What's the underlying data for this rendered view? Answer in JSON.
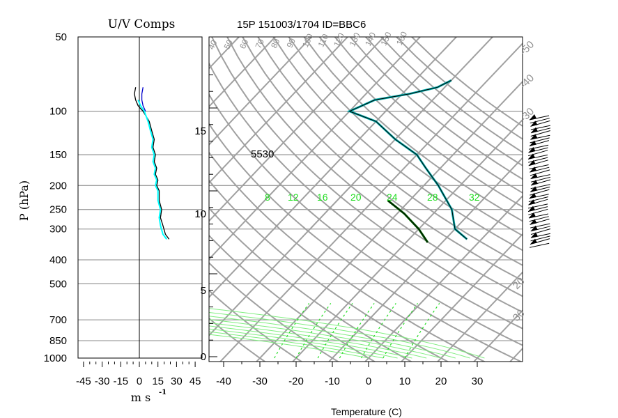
{
  "chart_data": [
    {
      "type": "line",
      "title": "U/V Comps",
      "xlabel": "m s",
      "xlabel_superscript": "-1",
      "ylabel": "P (hPa)",
      "xlim": [
        -50,
        50
      ],
      "ylim": [
        1000,
        50
      ],
      "y_scale": "log",
      "x_tick_labels": [
        "-45",
        "-30",
        "-15",
        "0",
        "15",
        "30",
        "45"
      ],
      "pressure_levels": [
        50,
        100,
        150,
        200,
        250,
        300,
        400,
        500,
        700,
        850,
        1000
      ],
      "grid": true,
      "series": [
        {
          "color": "#000000",
          "p": [
            330,
            315,
            290,
            270,
            250,
            230,
            210,
            200,
            190,
            180,
            170,
            160,
            150,
            140,
            130,
            120,
            110,
            100,
            95,
            90,
            85,
            80
          ],
          "v": [
            24,
            21,
            19,
            17,
            18,
            16,
            16,
            14,
            15,
            13,
            14,
            12,
            13,
            11,
            12,
            10,
            8,
            3,
            -1,
            -3,
            -4,
            -3
          ]
        },
        {
          "color": "#00ffff",
          "p": [
            330,
            315,
            290,
            270,
            250,
            230,
            210,
            200,
            190,
            180,
            170,
            160,
            150,
            140,
            130,
            120,
            110,
            100,
            95,
            90
          ],
          "v": [
            22,
            19,
            17,
            16,
            17,
            15,
            15,
            13,
            14,
            12,
            13,
            11,
            12,
            10,
            11,
            9,
            7,
            4,
            1,
            -1
          ]
        },
        {
          "color": "#0000cc",
          "p": [
            100,
            95,
            90,
            85,
            80
          ],
          "v": [
            5,
            3,
            2,
            2,
            3
          ]
        }
      ]
    },
    {
      "type": "line",
      "title": "15P 151003/1704 ID=BBC6",
      "xlabel": "Temperature (C)",
      "x_tick_labels": [
        "-40",
        "-30",
        "-20",
        "-10",
        "0",
        "10",
        "20",
        "30"
      ],
      "xlim": [
        -40,
        30
      ],
      "height_km_labels": [
        "15",
        "10",
        "5",
        "0"
      ],
      "skew_t": true,
      "annotations": [
        "5530"
      ],
      "potential_temperature_labels": [
        "40",
        "50",
        "60",
        "70",
        "80",
        "90",
        "100",
        "110",
        "120",
        "130",
        "140",
        "150",
        "160"
      ],
      "isotherm_labels": [
        "-50",
        "-40",
        "-30"
      ],
      "isotherm_labels_right": [
        "20",
        "30"
      ],
      "moist_adiabat_labels": [
        "8",
        "12",
        "16",
        "20",
        "24",
        "28",
        "32"
      ],
      "series": [
        {
          "color": "#00aaaa",
          "p": [
            330,
            300,
            250,
            200,
            170,
            150,
            130,
            110,
            100,
            95,
            90,
            85,
            80,
            75
          ],
          "t": [
            -4,
            -10,
            -16,
            -26,
            -34,
            -40,
            -50,
            -60,
            -70,
            -68,
            -66,
            -58,
            -52,
            -50
          ]
        },
        {
          "color": "#006400",
          "p": [
            340,
            300,
            260,
            230
          ],
          "t": [
            -14,
            -20,
            -28,
            -36
          ]
        }
      ]
    }
  ]
}
